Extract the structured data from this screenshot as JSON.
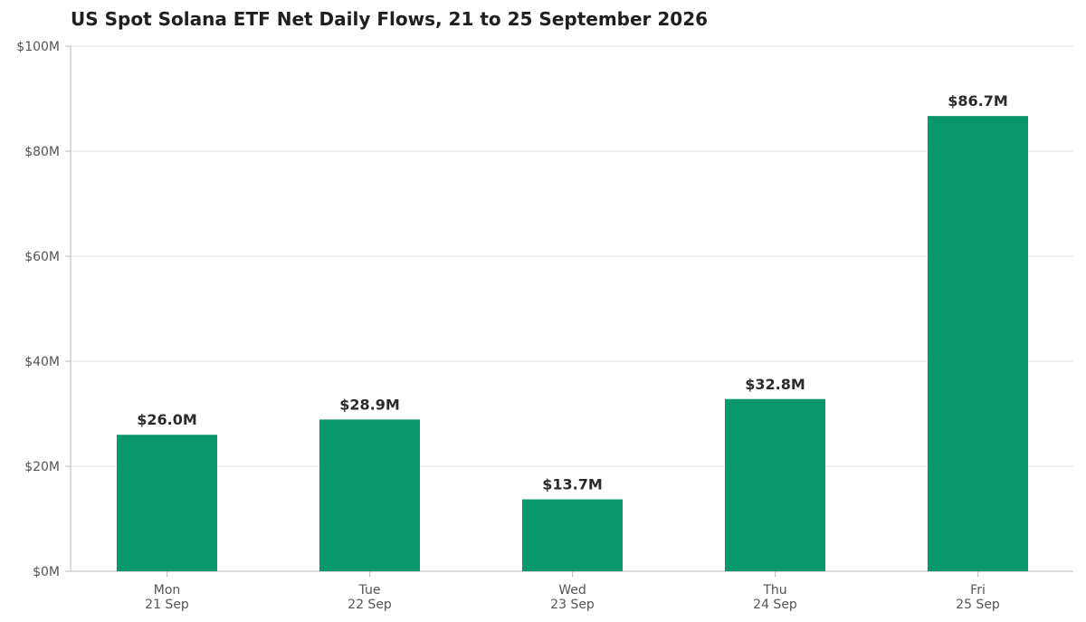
{
  "chart_data": {
    "type": "bar",
    "title": "US Spot Solana ETF Net Daily Flows, 21 to 25 September 2026",
    "xlabel": "",
    "ylabel": "",
    "categories": [
      {
        "day": "Mon",
        "date": "21 Sep"
      },
      {
        "day": "Tue",
        "date": "22 Sep"
      },
      {
        "day": "Wed",
        "date": "23 Sep"
      },
      {
        "day": "Thu",
        "date": "24 Sep"
      },
      {
        "day": "Fri",
        "date": "25 Sep"
      }
    ],
    "values": [
      26.0,
      28.9,
      13.7,
      32.8,
      86.7
    ],
    "data_labels": [
      "$26.0M",
      "$28.9M",
      "$13.7M",
      "$32.8M",
      "$86.7M"
    ],
    "ylim": [
      0,
      100
    ],
    "y_ticks": [
      0,
      20,
      40,
      60,
      80,
      100
    ],
    "y_tick_labels": [
      "$0M",
      "$20M",
      "$40M",
      "$60M",
      "$80M",
      "$100M"
    ],
    "grid": "horizontal",
    "legend": "none",
    "bar_color": "#07976b",
    "grid_color": "#e6e6e6",
    "axis_color": "#bbbbbb"
  }
}
